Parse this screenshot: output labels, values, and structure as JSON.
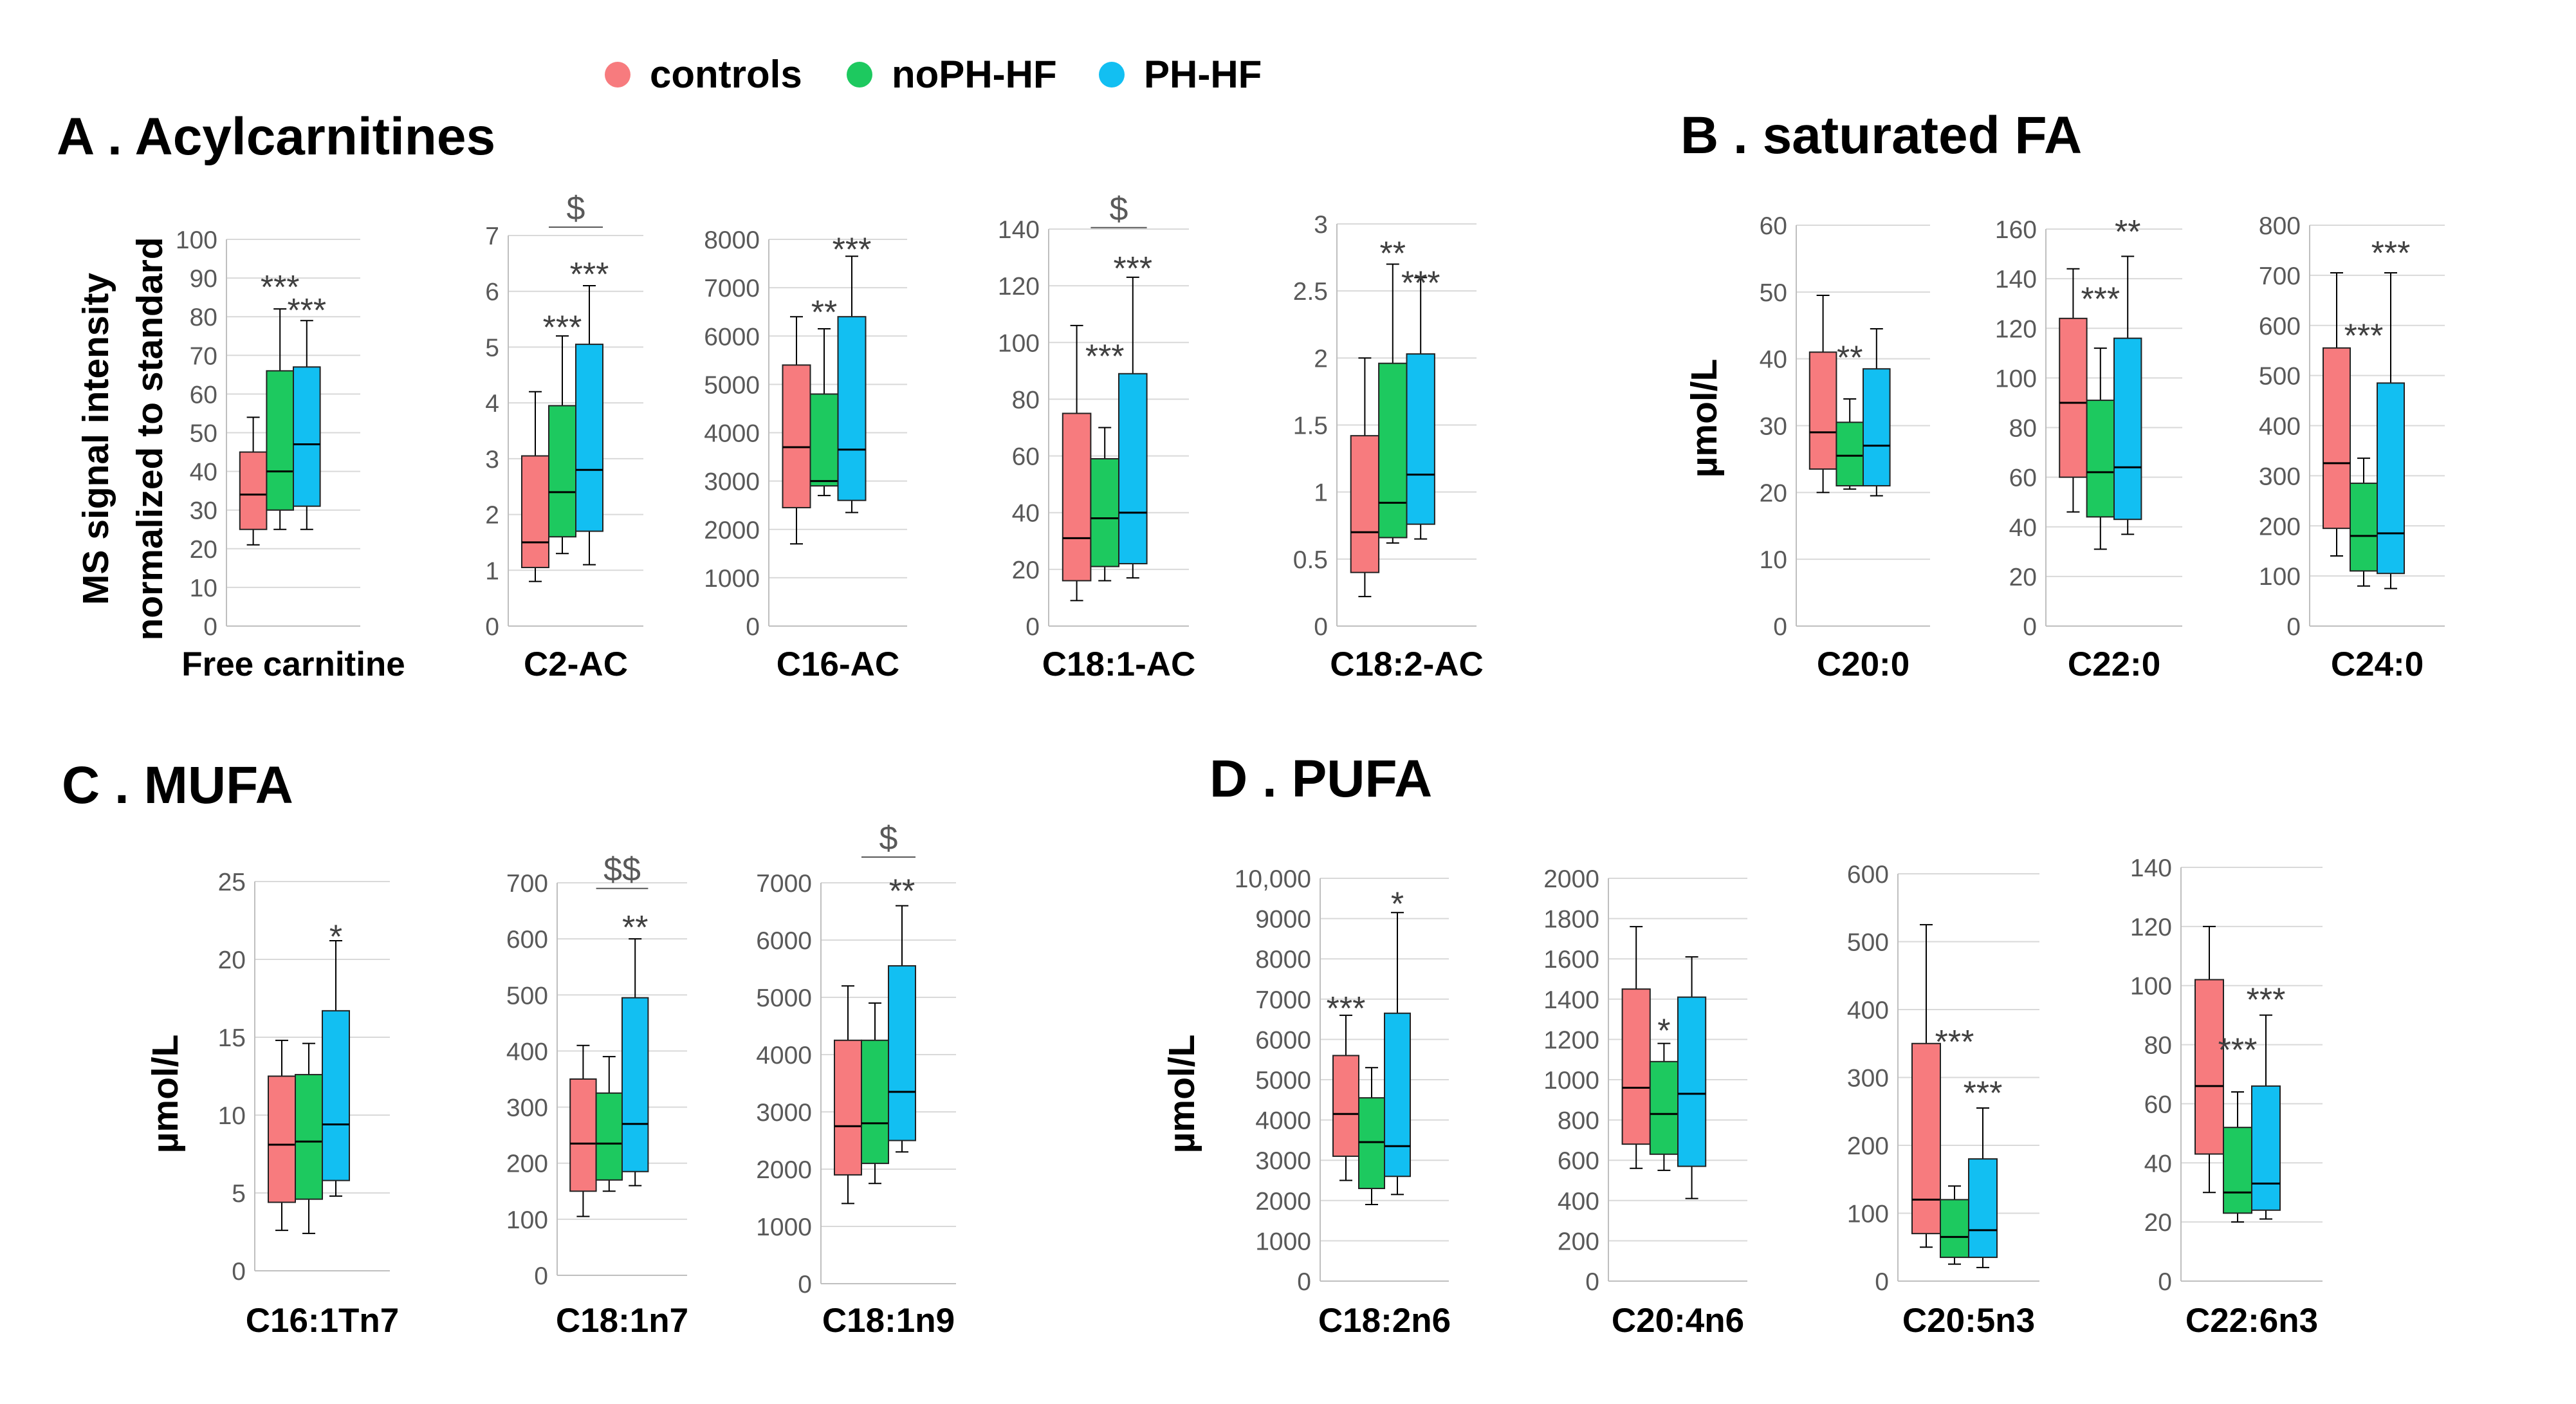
{
  "legend": [
    {
      "name": "controls",
      "color": "#F77B7E"
    },
    {
      "name": "noPH-HF",
      "color": "#1DC95F"
    },
    {
      "name": "PH-HF",
      "color": "#12BFF2"
    }
  ],
  "panels": [
    {
      "title": "A . Acylcarnitines",
      "ylabel": [
        "MS signal intensity",
        "normalized to standard"
      ]
    },
    {
      "title": "B . saturated FA",
      "ylabel": [
        "µmol/L"
      ]
    },
    {
      "title": "C . MUFA",
      "ylabel": [
        "µmol/L"
      ]
    },
    {
      "title": "D . PUFA",
      "ylabel": [
        "µmol/L"
      ]
    }
  ],
  "chart_data": [
    {
      "type": "box",
      "category": "Free carnitine",
      "ylim": [
        0,
        100
      ],
      "ticks": [
        "0",
        "10",
        "20",
        "30",
        "40",
        "50",
        "60",
        "70",
        "80",
        "90",
        "100"
      ],
      "boxes": [
        {
          "group": "controls",
          "min": 21,
          "q1": 25,
          "median": 34,
          "q3": 45,
          "max": 54
        },
        {
          "group": "noPH-HF",
          "min": 25,
          "q1": 30,
          "median": 40,
          "q3": 66,
          "max": 82
        },
        {
          "group": "PH-HF",
          "min": 25,
          "q1": 31,
          "median": 47,
          "q3": 67,
          "max": 79
        }
      ],
      "annotations": [
        {
          "group": "noPH-HF",
          "text": "***",
          "value": 89
        },
        {
          "group": "PH-HF",
          "text": "***",
          "value": 83
        }
      ]
    },
    {
      "type": "box",
      "category": "C2-AC",
      "ylim": [
        0,
        7
      ],
      "ticks": [
        "0",
        "1",
        "2",
        "3",
        "4",
        "5",
        "6",
        "7"
      ],
      "boxes": [
        {
          "group": "controls",
          "min": 0.8,
          "q1": 1.05,
          "median": 1.5,
          "q3": 3.05,
          "max": 4.2
        },
        {
          "group": "noPH-HF",
          "min": 1.3,
          "q1": 1.6,
          "median": 2.4,
          "q3": 3.95,
          "max": 5.2
        },
        {
          "group": "PH-HF",
          "min": 1.1,
          "q1": 1.7,
          "median": 2.8,
          "q3": 5.05,
          "max": 6.1
        }
      ],
      "annotations": [
        {
          "group": "noPH-HF",
          "text": "***",
          "value": 5.45
        },
        {
          "group": "PH-HF",
          "text": "***",
          "value": 6.4
        }
      ],
      "bracket": {
        "text": "$",
        "value": 7.15,
        "from": "noPH-HF",
        "to": "PH-HF"
      }
    },
    {
      "type": "box",
      "category": "C16-AC",
      "ylim": [
        0,
        8000
      ],
      "ticks": [
        "0",
        "1000",
        "2000",
        "3000",
        "4000",
        "5000",
        "6000",
        "7000",
        "8000"
      ],
      "boxes": [
        {
          "group": "controls",
          "min": 1700,
          "q1": 2450,
          "median": 3700,
          "q3": 5400,
          "max": 6400
        },
        {
          "group": "noPH-HF",
          "min": 2700,
          "q1": 2900,
          "median": 3000,
          "q3": 4800,
          "max": 6150
        },
        {
          "group": "PH-HF",
          "min": 2350,
          "q1": 2600,
          "median": 3650,
          "q3": 6400,
          "max": 7650
        }
      ],
      "annotations": [
        {
          "group": "noPH-HF",
          "text": "**",
          "value": 6600
        },
        {
          "group": "PH-HF",
          "text": "***",
          "value": 7900
        }
      ]
    },
    {
      "type": "box",
      "category": "C18:1-AC",
      "ylim": [
        0,
        140
      ],
      "ticks": [
        "0",
        "20",
        "40",
        "60",
        "80",
        "100",
        "120",
        "140"
      ],
      "boxes": [
        {
          "group": "controls",
          "min": 9,
          "q1": 16,
          "median": 31,
          "q3": 75,
          "max": 106
        },
        {
          "group": "noPH-HF",
          "min": 16,
          "q1": 21,
          "median": 38,
          "q3": 59,
          "max": 70
        },
        {
          "group": "PH-HF",
          "min": 17,
          "q1": 22,
          "median": 40,
          "q3": 89,
          "max": 123
        }
      ],
      "annotations": [
        {
          "group": "noPH-HF",
          "text": "***",
          "value": 97
        },
        {
          "group": "PH-HF",
          "text": "***",
          "value": 128
        }
      ],
      "bracket": {
        "text": "$",
        "value": 140.5,
        "from": "noPH-HF",
        "to": "PH-HF"
      }
    },
    {
      "type": "box",
      "category": "C18:2-AC",
      "ylim": [
        0,
        3
      ],
      "ticks": [
        "0",
        "0.5",
        "1",
        "1.5",
        "2",
        "2.5",
        "3"
      ],
      "boxes": [
        {
          "group": "controls",
          "min": 0.22,
          "q1": 0.4,
          "median": 0.7,
          "q3": 1.42,
          "max": 2.0
        },
        {
          "group": "noPH-HF",
          "min": 0.62,
          "q1": 0.66,
          "median": 0.92,
          "q3": 1.96,
          "max": 2.7
        },
        {
          "group": "PH-HF",
          "min": 0.65,
          "q1": 0.76,
          "median": 1.13,
          "q3": 2.03,
          "max": 2.6
        }
      ],
      "annotations": [
        {
          "group": "noPH-HF",
          "text": "**",
          "value": 2.82
        },
        {
          "group": "PH-HF",
          "text": "***",
          "value": 2.6
        }
      ]
    },
    {
      "type": "box",
      "category": "C20:0",
      "ylim": [
        0,
        60
      ],
      "ticks": [
        "0",
        "10",
        "20",
        "30",
        "40",
        "50",
        "60"
      ],
      "boxes": [
        {
          "group": "controls",
          "min": 20,
          "q1": 23.5,
          "median": 29,
          "q3": 41,
          "max": 49.5
        },
        {
          "group": "noPH-HF",
          "min": 20.5,
          "q1": 21,
          "median": 25.5,
          "q3": 30.5,
          "max": 34
        },
        {
          "group": "PH-HF",
          "min": 19.5,
          "q1": 21,
          "median": 27,
          "q3": 38.5,
          "max": 44.5
        }
      ],
      "annotations": [
        {
          "group": "noPH-HF",
          "text": "**",
          "value": 41
        }
      ]
    },
    {
      "type": "box",
      "category": "C22:0",
      "ylim": [
        0,
        160
      ],
      "ticks": [
        "0",
        "20",
        "40",
        "60",
        "80",
        "100",
        "120",
        "140",
        "160"
      ],
      "boxes": [
        {
          "group": "controls",
          "min": 46,
          "q1": 60,
          "median": 90,
          "q3": 124,
          "max": 144
        },
        {
          "group": "noPH-HF",
          "min": 31,
          "q1": 44,
          "median": 62,
          "q3": 91,
          "max": 112
        },
        {
          "group": "PH-HF",
          "min": 37,
          "q1": 43,
          "median": 64,
          "q3": 116,
          "max": 149
        }
      ],
      "annotations": [
        {
          "group": "noPH-HF",
          "text": "***",
          "value": 134
        },
        {
          "group": "PH-HF",
          "text": "**",
          "value": 161
        }
      ]
    },
    {
      "type": "box",
      "category": "C24:0",
      "ylim": [
        0,
        800
      ],
      "ticks": [
        "0",
        "100",
        "200",
        "300",
        "400",
        "500",
        "600",
        "700",
        "800"
      ],
      "boxes": [
        {
          "group": "controls",
          "min": 140,
          "q1": 195,
          "median": 325,
          "q3": 555,
          "max": 705
        },
        {
          "group": "noPH-HF",
          "min": 80,
          "q1": 110,
          "median": 180,
          "q3": 285,
          "max": 335
        },
        {
          "group": "PH-HF",
          "min": 75,
          "q1": 105,
          "median": 185,
          "q3": 485,
          "max": 705
        }
      ],
      "annotations": [
        {
          "group": "noPH-HF",
          "text": "***",
          "value": 590
        },
        {
          "group": "PH-HF",
          "text": "***",
          "value": 755
        }
      ]
    },
    {
      "type": "box",
      "category": "C16:1Tn7",
      "ylim": [
        0,
        25
      ],
      "ticks": [
        "0",
        "5",
        "10",
        "15",
        "20",
        "25"
      ],
      "boxes": [
        {
          "group": "controls",
          "min": 2.6,
          "q1": 4.4,
          "median": 8.1,
          "q3": 12.5,
          "max": 14.8
        },
        {
          "group": "noPH-HF",
          "min": 2.4,
          "q1": 4.6,
          "median": 8.3,
          "q3": 12.6,
          "max": 14.6
        },
        {
          "group": "PH-HF",
          "min": 4.8,
          "q1": 5.8,
          "median": 9.4,
          "q3": 16.7,
          "max": 21.2
        }
      ],
      "annotations": [
        {
          "group": "PH-HF",
          "text": "*",
          "value": 21.8
        }
      ]
    },
    {
      "type": "box",
      "category": "C18:1n7",
      "ylim": [
        0,
        700
      ],
      "ticks": [
        "0",
        "100",
        "200",
        "300",
        "400",
        "500",
        "600",
        "700"
      ],
      "boxes": [
        {
          "group": "controls",
          "min": 105,
          "q1": 150,
          "median": 235,
          "q3": 350,
          "max": 410
        },
        {
          "group": "noPH-HF",
          "min": 150,
          "q1": 170,
          "median": 235,
          "q3": 325,
          "max": 390
        },
        {
          "group": "PH-HF",
          "min": 160,
          "q1": 185,
          "median": 270,
          "q3": 495,
          "max": 600
        }
      ],
      "annotations": [
        {
          "group": "PH-HF",
          "text": "**",
          "value": 630
        }
      ],
      "bracket": {
        "text": "$$",
        "value": 690,
        "from": "noPH-HF",
        "to": "PH-HF"
      }
    },
    {
      "type": "box",
      "category": "C18:1n9",
      "ylim": [
        0,
        7000
      ],
      "ticks": [
        "0",
        "1000",
        "2000",
        "3000",
        "4000",
        "5000",
        "6000",
        "7000"
      ],
      "boxes": [
        {
          "group": "controls",
          "min": 1400,
          "q1": 1900,
          "median": 2750,
          "q3": 4250,
          "max": 5200
        },
        {
          "group": "noPH-HF",
          "min": 1750,
          "q1": 2100,
          "median": 2800,
          "q3": 4250,
          "max": 4900
        },
        {
          "group": "PH-HF",
          "min": 2300,
          "q1": 2500,
          "median": 3350,
          "q3": 5550,
          "max": 6600
        }
      ],
      "annotations": [
        {
          "group": "PH-HF",
          "text": "**",
          "value": 6950
        }
      ],
      "bracket": {
        "text": "$",
        "value": 7450,
        "from": "noPH-HF",
        "to": "PH-HF"
      }
    },
    {
      "type": "box",
      "category": "C18:2n6",
      "ylim": [
        0,
        10000
      ],
      "ticks": [
        "0",
        "1000",
        "2000",
        "3000",
        "4000",
        "5000",
        "6000",
        "7000",
        "8000",
        "9000",
        "10,000"
      ],
      "boxes": [
        {
          "group": "controls",
          "min": 2500,
          "q1": 3100,
          "median": 4150,
          "q3": 5600,
          "max": 6600
        },
        {
          "group": "noPH-HF",
          "min": 1900,
          "q1": 2300,
          "median": 3450,
          "q3": 4550,
          "max": 5300
        },
        {
          "group": "PH-HF",
          "min": 2150,
          "q1": 2600,
          "median": 3350,
          "q3": 6650,
          "max": 9150
        }
      ],
      "annotations": [
        {
          "group": "controls",
          "text": "***",
          "value": 6900
        },
        {
          "group": "PH-HF",
          "text": "*",
          "value": 9500
        }
      ]
    },
    {
      "type": "box",
      "category": "C20:4n6",
      "ylim": [
        0,
        2000
      ],
      "ticks": [
        "0",
        "200",
        "400",
        "600",
        "800",
        "1000",
        "1200",
        "1400",
        "1600",
        "1800",
        "2000"
      ],
      "boxes": [
        {
          "group": "controls",
          "min": 560,
          "q1": 680,
          "median": 960,
          "q3": 1450,
          "max": 1760
        },
        {
          "group": "noPH-HF",
          "min": 550,
          "q1": 630,
          "median": 830,
          "q3": 1090,
          "max": 1180
        },
        {
          "group": "PH-HF",
          "min": 410,
          "q1": 570,
          "median": 930,
          "q3": 1410,
          "max": 1610
        }
      ],
      "annotations": [
        {
          "group": "noPH-HF",
          "text": "*",
          "value": 1270
        }
      ]
    },
    {
      "type": "box",
      "category": "C20:5n3",
      "ylim": [
        0,
        600
      ],
      "ticks": [
        "0",
        "100",
        "200",
        "300",
        "400",
        "500",
        "600"
      ],
      "boxes": [
        {
          "group": "controls",
          "min": 50,
          "q1": 70,
          "median": 120,
          "q3": 350,
          "max": 525
        },
        {
          "group": "noPH-HF",
          "min": 25,
          "q1": 35,
          "median": 65,
          "q3": 120,
          "max": 140
        },
        {
          "group": "PH-HF",
          "min": 20,
          "q1": 35,
          "median": 75,
          "q3": 180,
          "max": 255
        }
      ],
      "annotations": [
        {
          "group": "noPH-HF",
          "text": "***",
          "value": 360
        },
        {
          "group": "PH-HF",
          "text": "***",
          "value": 285
        }
      ]
    },
    {
      "type": "box",
      "category": "C22:6n3",
      "ylim": [
        0,
        140
      ],
      "ticks": [
        "0",
        "20",
        "40",
        "60",
        "80",
        "100",
        "120",
        "140"
      ],
      "boxes": [
        {
          "group": "controls",
          "min": 30,
          "q1": 43,
          "median": 66,
          "q3": 102,
          "max": 120
        },
        {
          "group": "noPH-HF",
          "min": 20,
          "q1": 23,
          "median": 30,
          "q3": 52,
          "max": 64
        },
        {
          "group": "PH-HF",
          "min": 21,
          "q1": 24,
          "median": 33,
          "q3": 66,
          "max": 90
        }
      ],
      "annotations": [
        {
          "group": "noPH-HF",
          "text": "***",
          "value": 80
        },
        {
          "group": "PH-HF",
          "text": "***",
          "value": 97
        }
      ]
    }
  ]
}
